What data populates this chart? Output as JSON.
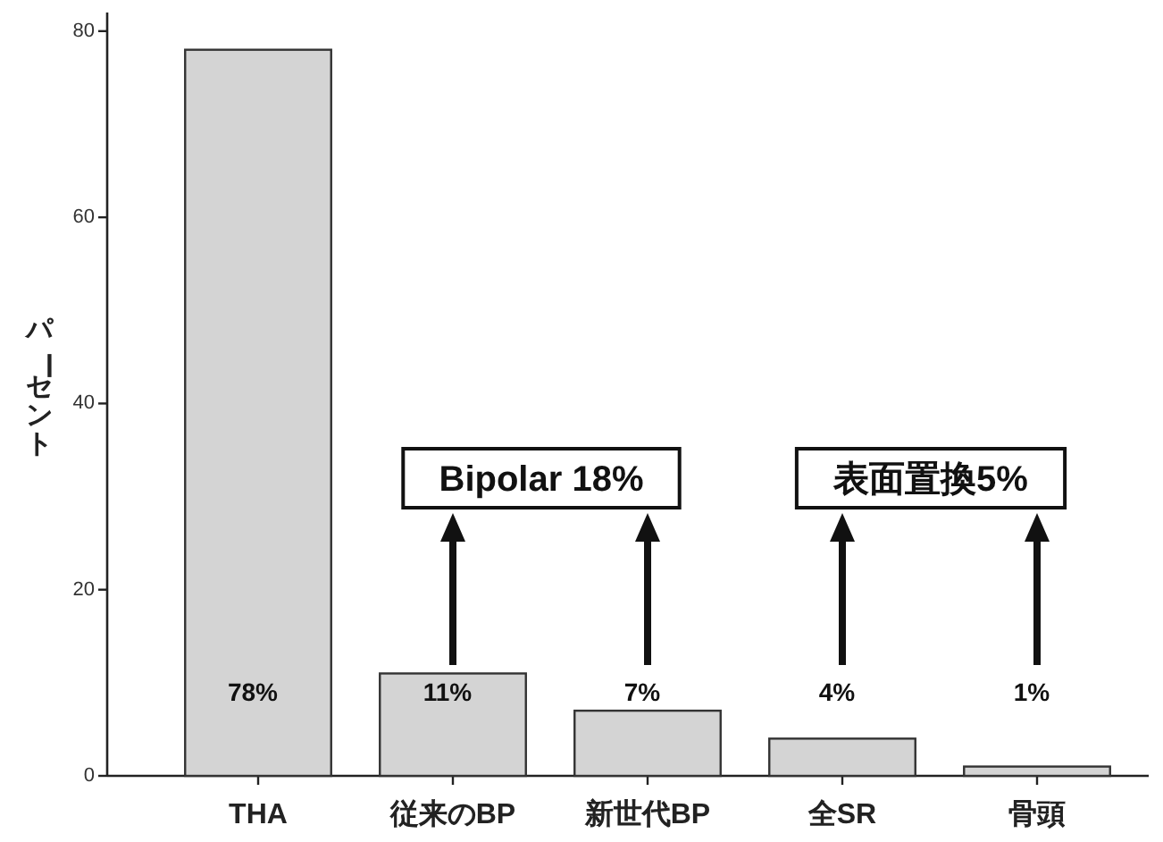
{
  "chart_data": {
    "type": "bar",
    "ylabel": "パーセント",
    "categories": [
      "THA",
      "従来のBP",
      "新世代BP",
      "全SR",
      "骨頭"
    ],
    "values": [
      78,
      11,
      7,
      4,
      1
    ],
    "value_labels": [
      "78%",
      "11%",
      "7%",
      "4%",
      "1%"
    ],
    "color": "#d4d4d4",
    "ylim": [
      0,
      82
    ],
    "yticks": [
      0,
      20,
      40,
      60,
      80
    ],
    "annotations": [
      "Bipolar 18%",
      "表面置換5%"
    ]
  }
}
